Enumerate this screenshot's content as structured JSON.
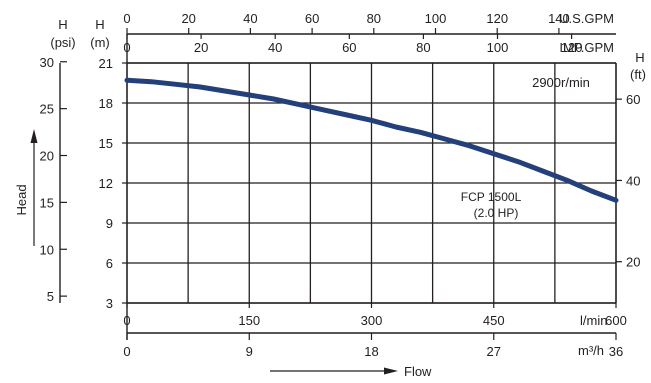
{
  "chart_data": {
    "type": "line",
    "grid": true,
    "annotation": "2900r/min",
    "series": [
      {
        "name": "FCP 1500L",
        "name_line2": "(2.0 HP)",
        "color": "#24407a",
        "x_lmin": [
          0,
          30,
          60,
          90,
          120,
          150,
          180,
          210,
          240,
          270,
          300,
          330,
          360,
          390,
          420,
          450,
          480,
          510,
          540,
          570,
          600
        ],
        "y_m": [
          19.7,
          19.6,
          19.4,
          19.2,
          18.9,
          18.6,
          18.3,
          17.9,
          17.5,
          17.1,
          16.7,
          16.2,
          15.8,
          15.3,
          14.8,
          14.2,
          13.6,
          12.9,
          12.2,
          11.4,
          10.7
        ]
      }
    ],
    "axes": {
      "bottom_lmin": {
        "unit": "l/min",
        "range": [
          0,
          600
        ],
        "ticks": [
          "0",
          "150",
          "300",
          "450",
          "600"
        ]
      },
      "bottom_m3h": {
        "unit": "m³/h",
        "range": [
          0,
          36
        ],
        "ticks": [
          "0",
          "9",
          "18",
          "27",
          "36"
        ]
      },
      "top_usgpm": {
        "unit": "U.S.GPM",
        "ticks": [
          "0",
          "20",
          "40",
          "60",
          "80",
          "100",
          "120",
          "140"
        ]
      },
      "top_impgpm": {
        "unit": "IMP.GPM",
        "ticks": [
          "0",
          "20",
          "40",
          "60",
          "80",
          "100",
          "120"
        ]
      },
      "left_m": {
        "label": "H",
        "unit": "(m)",
        "range": [
          3,
          21
        ],
        "ticks": [
          "21",
          "18",
          "15",
          "12",
          "9",
          "6",
          "3"
        ]
      },
      "left_psi": {
        "label": "H",
        "unit": "(psi)",
        "ticks": [
          "30",
          "25",
          "20",
          "15",
          "10",
          "5"
        ]
      },
      "right_ft": {
        "label": "H",
        "unit": "(ft)",
        "ticks": [
          "60",
          "40",
          "20"
        ]
      }
    },
    "xlabel": "Flow",
    "ylabel": "Head"
  }
}
